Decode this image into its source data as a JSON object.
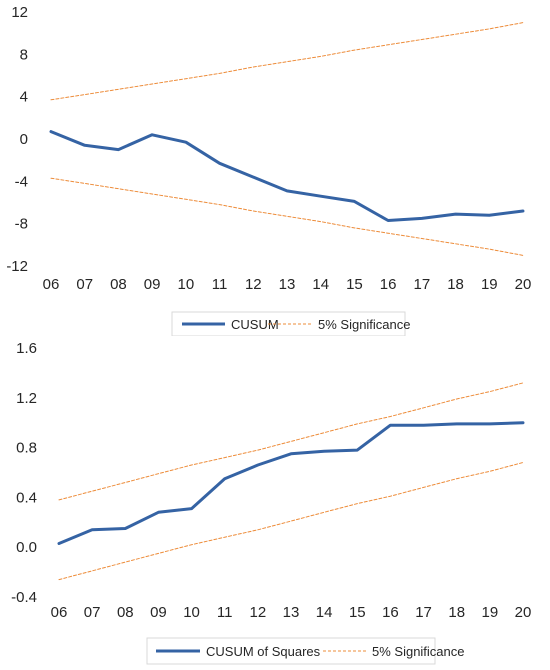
{
  "chart_data": [
    {
      "type": "line",
      "categories": [
        "06",
        "07",
        "08",
        "09",
        "10",
        "11",
        "12",
        "13",
        "14",
        "15",
        "16",
        "17",
        "18",
        "19",
        "20"
      ],
      "ylim": [
        -12,
        12
      ],
      "yticks": [
        12,
        8,
        4,
        0,
        -4,
        -8,
        -12
      ],
      "ytick_labels": [
        "12",
        "8",
        "4",
        "0",
        "-4",
        "-8",
        "-12"
      ],
      "grid": false,
      "legend_position": "bottom",
      "series": [
        {
          "name": "CUSUM",
          "style": "solid",
          "color": "#3563a4",
          "values": [
            0.7,
            -0.6,
            -1.0,
            0.4,
            -0.3,
            -2.3,
            -3.6,
            -4.9,
            -5.4,
            -5.9,
            -7.7,
            -7.5,
            -7.1,
            -7.2,
            -6.8
          ]
        },
        {
          "name": "5% Significance",
          "style": "dashed",
          "color": "#ed8c3a",
          "values": [
            3.7,
            4.2,
            4.7,
            5.2,
            5.7,
            6.2,
            6.8,
            7.3,
            7.8,
            8.4,
            8.9,
            9.4,
            9.9,
            10.4,
            11.0
          ]
        },
        {
          "name": "",
          "style": "dashed",
          "color": "#ed8c3a",
          "values": [
            -3.7,
            -4.2,
            -4.7,
            -5.2,
            -5.7,
            -6.2,
            -6.8,
            -7.3,
            -7.8,
            -8.4,
            -8.9,
            -9.4,
            -9.9,
            -10.4,
            -11.0
          ]
        }
      ],
      "legend": [
        {
          "label": "CUSUM",
          "style": "solid",
          "color": "#3563a4"
        },
        {
          "label": "5% Significance",
          "style": "dashed",
          "color": "#ed8c3a"
        }
      ]
    },
    {
      "type": "line",
      "categories": [
        "06",
        "07",
        "08",
        "09",
        "10",
        "11",
        "12",
        "13",
        "14",
        "15",
        "16",
        "17",
        "18",
        "19",
        "20"
      ],
      "ylim": [
        -0.4,
        1.6
      ],
      "yticks": [
        1.6,
        1.2,
        0.8,
        0.4,
        0.0,
        -0.4
      ],
      "ytick_labels": [
        "1.6",
        "1.2",
        "0.8",
        "0.4",
        "0.0",
        "-0.4"
      ],
      "grid": false,
      "legend_position": "bottom",
      "series": [
        {
          "name": "CUSUM of Squares",
          "style": "solid",
          "color": "#3563a4",
          "values": [
            0.03,
            0.14,
            0.15,
            0.28,
            0.31,
            0.55,
            0.66,
            0.75,
            0.77,
            0.78,
            0.98,
            0.98,
            0.99,
            0.99,
            1.0
          ]
        },
        {
          "name": "5% Significance",
          "style": "dashed",
          "color": "#ed8c3a",
          "values": [
            0.38,
            0.45,
            0.52,
            0.59,
            0.66,
            0.72,
            0.78,
            0.85,
            0.92,
            0.99,
            1.05,
            1.12,
            1.19,
            1.25,
            1.32
          ]
        },
        {
          "name": "",
          "style": "dashed",
          "color": "#ed8c3a",
          "values": [
            -0.26,
            -0.19,
            -0.12,
            -0.05,
            0.02,
            0.08,
            0.14,
            0.21,
            0.28,
            0.35,
            0.41,
            0.48,
            0.55,
            0.61,
            0.68
          ]
        }
      ],
      "legend": [
        {
          "label": "CUSUM of Squares",
          "style": "solid",
          "color": "#3563a4"
        },
        {
          "label": "5% Significance",
          "style": "dashed",
          "color": "#ed8c3a"
        }
      ]
    }
  ]
}
